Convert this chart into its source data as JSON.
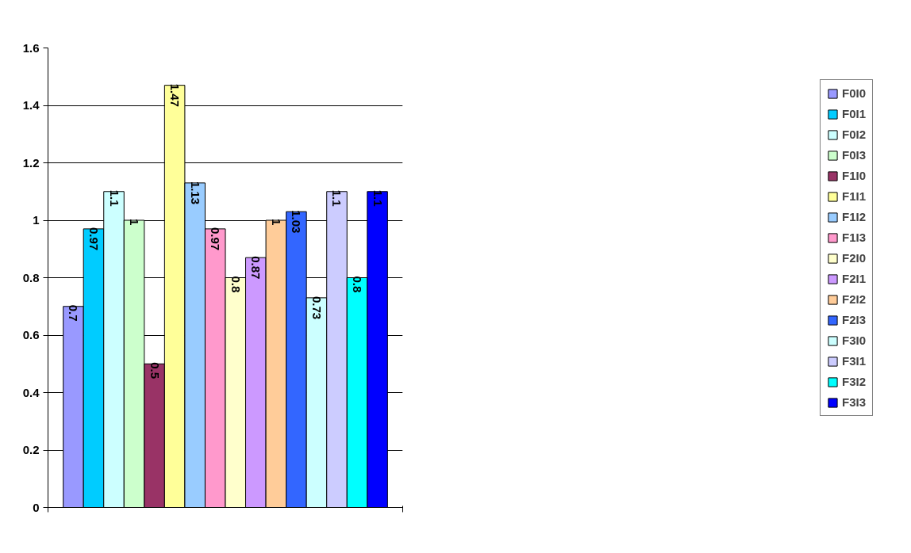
{
  "chart_data": {
    "type": "bar",
    "categories": [
      null
    ],
    "series": [
      {
        "name": "F0I0",
        "color": "#9999ff",
        "values": [
          0.7
        ]
      },
      {
        "name": "F0I1",
        "color": "#00ccff",
        "values": [
          0.97
        ]
      },
      {
        "name": "F0I2",
        "color": "#ccffff",
        "values": [
          1.1
        ]
      },
      {
        "name": "F0I3",
        "color": "#ccffcc",
        "values": [
          1
        ]
      },
      {
        "name": "F1I0",
        "color": "#993366",
        "values": [
          0.5
        ]
      },
      {
        "name": "F1I1",
        "color": "#ffff99",
        "values": [
          1.47
        ]
      },
      {
        "name": "F1I2",
        "color": "#99ccff",
        "values": [
          1.13
        ]
      },
      {
        "name": "F1I3",
        "color": "#ff99cc",
        "values": [
          0.97
        ]
      },
      {
        "name": "F2I0",
        "color": "#ffffcc",
        "values": [
          0.8
        ]
      },
      {
        "name": "F2I1",
        "color": "#cc99ff",
        "values": [
          0.87
        ]
      },
      {
        "name": "F2I2",
        "color": "#ffcc99",
        "values": [
          1
        ]
      },
      {
        "name": "F2I3",
        "color": "#3366ff",
        "values": [
          1.03
        ]
      },
      {
        "name": "F3I0",
        "color": "#ccffff",
        "values": [
          0.73
        ]
      },
      {
        "name": "F3I1",
        "color": "#ccccff",
        "values": [
          1.1
        ]
      },
      {
        "name": "F3I2",
        "color": "#00ffff",
        "values": [
          0.8
        ]
      },
      {
        "name": "F3I3",
        "color": "#0000ff",
        "values": [
          1.1
        ]
      }
    ],
    "ylim": [
      0,
      1.6
    ],
    "yticks": [
      0,
      0.2,
      0.4,
      0.6,
      0.8,
      1,
      1.2,
      1.4,
      1.6
    ],
    "grid": "y",
    "legend": "right",
    "data_labels": true,
    "tick_labels": "y"
  }
}
